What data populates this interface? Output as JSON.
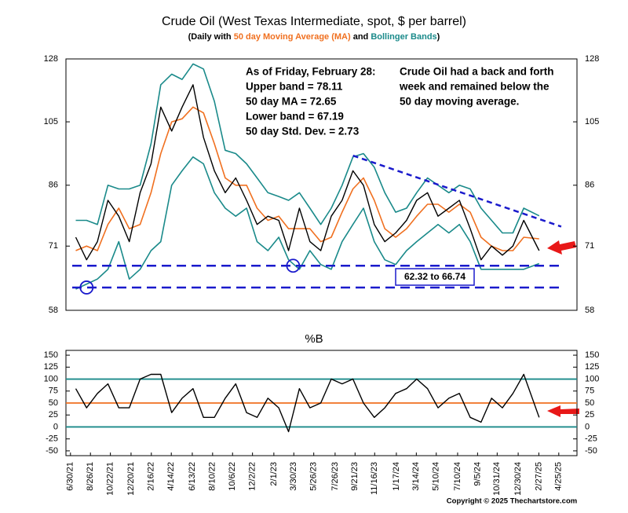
{
  "chart_data": [
    {
      "type": "line",
      "title": "Crude Oil (West Texas Intermediate, spot, $ per barrel)",
      "subtitle": [
        {
          "text": "(Daily with ",
          "color": "#000000"
        },
        {
          "text": "50 day Moving Average (MA)",
          "color": "#f07020"
        },
        {
          "text": " and ",
          "color": "#000000"
        },
        {
          "text": "Bollinger Bands",
          "color": "#1a8a8a"
        },
        {
          "text": ")",
          "color": "#000000"
        }
      ],
      "log": true,
      "xlim": [
        "6/17/21",
        "6/16/25"
      ],
      "ylim": [
        58,
        128
      ],
      "yticks": [
        58,
        71,
        86,
        105,
        128
      ],
      "x": [
        "7/15/21",
        "8/15/21",
        "9/15/21",
        "10/15/21",
        "11/15/21",
        "12/15/21",
        "1/15/22",
        "2/15/22",
        "3/15/22",
        "4/15/22",
        "5/15/22",
        "6/15/22",
        "7/15/22",
        "8/15/22",
        "9/15/22",
        "10/15/22",
        "11/15/22",
        "12/15/22",
        "1/15/23",
        "2/15/23",
        "3/15/23",
        "4/15/23",
        "5/15/23",
        "6/15/23",
        "7/15/23",
        "8/15/23",
        "9/15/23",
        "10/15/23",
        "11/15/23",
        "12/15/23",
        "1/15/24",
        "2/15/24",
        "3/15/24",
        "4/15/24",
        "5/15/24",
        "6/15/24",
        "7/15/24",
        "8/15/24",
        "9/15/24",
        "10/15/24",
        "11/15/24",
        "12/15/24",
        "1/15/25",
        "2/28/25"
      ],
      "series": [
        {
          "color": "#1a8a8a",
          "values": [
            77,
            77,
            76,
            86,
            85,
            85,
            86,
            98,
            118,
            122,
            120,
            126,
            124,
            112,
            96,
            95,
            92,
            88,
            84,
            83,
            82,
            84,
            80,
            76,
            80,
            86,
            94,
            95,
            91,
            84,
            79,
            80,
            84,
            88,
            86,
            84,
            86,
            85,
            80,
            77,
            74,
            74,
            80,
            78.11
          ]
        },
        {
          "color": "#1a8a8a",
          "values": [
            62,
            63,
            64,
            66,
            72,
            64,
            66,
            70,
            72,
            86,
            90,
            94,
            92,
            84,
            80,
            78,
            80,
            72,
            70,
            73,
            68,
            66,
            70,
            67,
            66,
            72,
            76,
            80,
            72,
            68,
            67,
            70,
            72,
            74,
            76,
            74,
            76,
            72,
            66,
            66,
            66,
            66,
            66,
            67.19
          ]
        },
        {
          "color": "#f07020",
          "values": [
            70,
            71,
            70,
            76,
            80,
            75,
            76,
            84,
            95,
            105,
            106,
            110,
            108,
            98,
            88,
            86,
            86,
            80,
            77,
            78,
            75,
            75,
            75,
            72,
            73,
            79,
            85,
            88,
            82,
            75,
            73,
            75,
            78,
            81,
            81,
            79,
            81,
            79,
            73,
            71,
            70,
            70,
            73,
            72.65
          ]
        },
        {
          "color": "#000000",
          "values": [
            73,
            68,
            72,
            82,
            78,
            72,
            84,
            92,
            110,
            102,
            110,
            118,
            100,
            90,
            84,
            88,
            82,
            76,
            78,
            77,
            70,
            80,
            72,
            70,
            78,
            82,
            90,
            86,
            76,
            72,
            74,
            77,
            82,
            84,
            78,
            80,
            82,
            75,
            68,
            71,
            69,
            71,
            77,
            70
          ]
        }
      ],
      "annotations": {
        "status": [
          "As of Friday,  February 28:",
          "Upper band = 78.11",
          "50 day MA = 72.65",
          "Lower band = 67.19",
          "50 day Std. Dev. = 2.73"
        ],
        "comment": [
          "Crude Oil had a back and forth",
          "week and remained below the",
          "50 day moving average."
        ],
        "range_label": "62.32 to 66.74",
        "levels": [
          66.74,
          62.32
        ],
        "trendline": {
          "x": [
            "9/15/23",
            "5/2/25"
          ],
          "values": [
            94.4,
            75.5
          ]
        },
        "markers": {
          "x": [
            "8/15/21",
            "3/28/23"
          ],
          "values": [
            62.32,
            66.74
          ]
        },
        "color": "#1a1acc"
      }
    },
    {
      "type": "line",
      "title": "%B",
      "xlim": [
        "6/17/21",
        "6/16/25"
      ],
      "ylim": [
        -60,
        160
      ],
      "yticks": [
        -50,
        -25,
        0,
        25,
        50,
        75,
        100,
        125,
        150
      ],
      "xticks": [
        "6/30/21",
        "8/26/21",
        "10/22/21",
        "12/20/21",
        "2/16/22",
        "4/14/22",
        "6/13/22",
        "8/10/22",
        "10/6/22",
        "12/2/22",
        "2/1/23",
        "3/30/23",
        "5/26/23",
        "7/26/23",
        "9/21/23",
        "11/16/23",
        "1/17/24",
        "3/14/24",
        "5/10/24",
        "7/10/24",
        "9/5/24",
        "10/31/24",
        "12/30/24",
        "2/27/25",
        "4/25/25"
      ],
      "reference_lines": [
        {
          "value": 100,
          "color": "#1a8a8a"
        },
        {
          "value": 50,
          "color": "#f07020"
        },
        {
          "value": 0,
          "color": "#1a8a8a"
        }
      ],
      "x": [
        "7/15/21",
        "8/15/21",
        "9/15/21",
        "10/15/21",
        "11/15/21",
        "12/15/21",
        "1/15/22",
        "2/15/22",
        "3/15/22",
        "4/15/22",
        "5/15/22",
        "6/15/22",
        "7/15/22",
        "8/15/22",
        "9/15/22",
        "10/15/22",
        "11/15/22",
        "12/15/22",
        "1/15/23",
        "2/15/23",
        "3/15/23",
        "4/15/23",
        "5/15/23",
        "6/15/23",
        "7/15/23",
        "8/15/23",
        "9/15/23",
        "10/15/23",
        "11/15/23",
        "12/15/23",
        "1/15/24",
        "2/15/24",
        "3/15/24",
        "4/15/24",
        "5/15/24",
        "6/15/24",
        "7/15/24",
        "8/15/24",
        "9/15/24",
        "10/15/24",
        "11/15/24",
        "12/15/24",
        "1/15/25",
        "2/28/25"
      ],
      "series": [
        {
          "color": "#000000",
          "values": [
            80,
            40,
            70,
            90,
            40,
            40,
            100,
            110,
            110,
            30,
            60,
            80,
            20,
            20,
            60,
            90,
            30,
            20,
            60,
            40,
            -10,
            80,
            40,
            50,
            100,
            90,
            100,
            50,
            20,
            40,
            70,
            80,
            100,
            80,
            40,
            60,
            70,
            20,
            10,
            60,
            40,
            70,
            110,
            20
          ]
        }
      ],
      "copyright": "Copyright © 2025 Thechartstore.com"
    }
  ]
}
